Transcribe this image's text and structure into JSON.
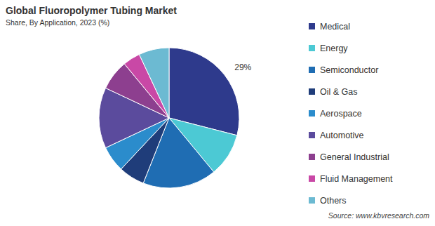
{
  "chart_data": {
    "type": "pie",
    "title": "Global Fluoropolymer Tubing Market",
    "subtitle": "Share, By Application, 2023 (%)",
    "source": "Source: www.kbvresearch.com",
    "categories": [
      "Medical",
      "Energy",
      "Semiconductor",
      "Oil & Gas",
      "Aerospace",
      "Automotive",
      "General Industrial",
      "Fluid Management",
      "Others"
    ],
    "values": [
      29,
      10,
      17,
      6,
      6,
      14,
      7,
      4,
      7
    ],
    "value_labels": [
      "29%",
      null,
      null,
      null,
      null,
      null,
      null,
      null,
      null
    ],
    "data_labels": true,
    "colors": [
      "#2e3a8c",
      "#4cc9d4",
      "#1f6db3",
      "#1f3d7a",
      "#2b8ccc",
      "#5b4b9d",
      "#8d3f8f",
      "#c948a6",
      "#6cbad2"
    ],
    "legend": "right"
  }
}
